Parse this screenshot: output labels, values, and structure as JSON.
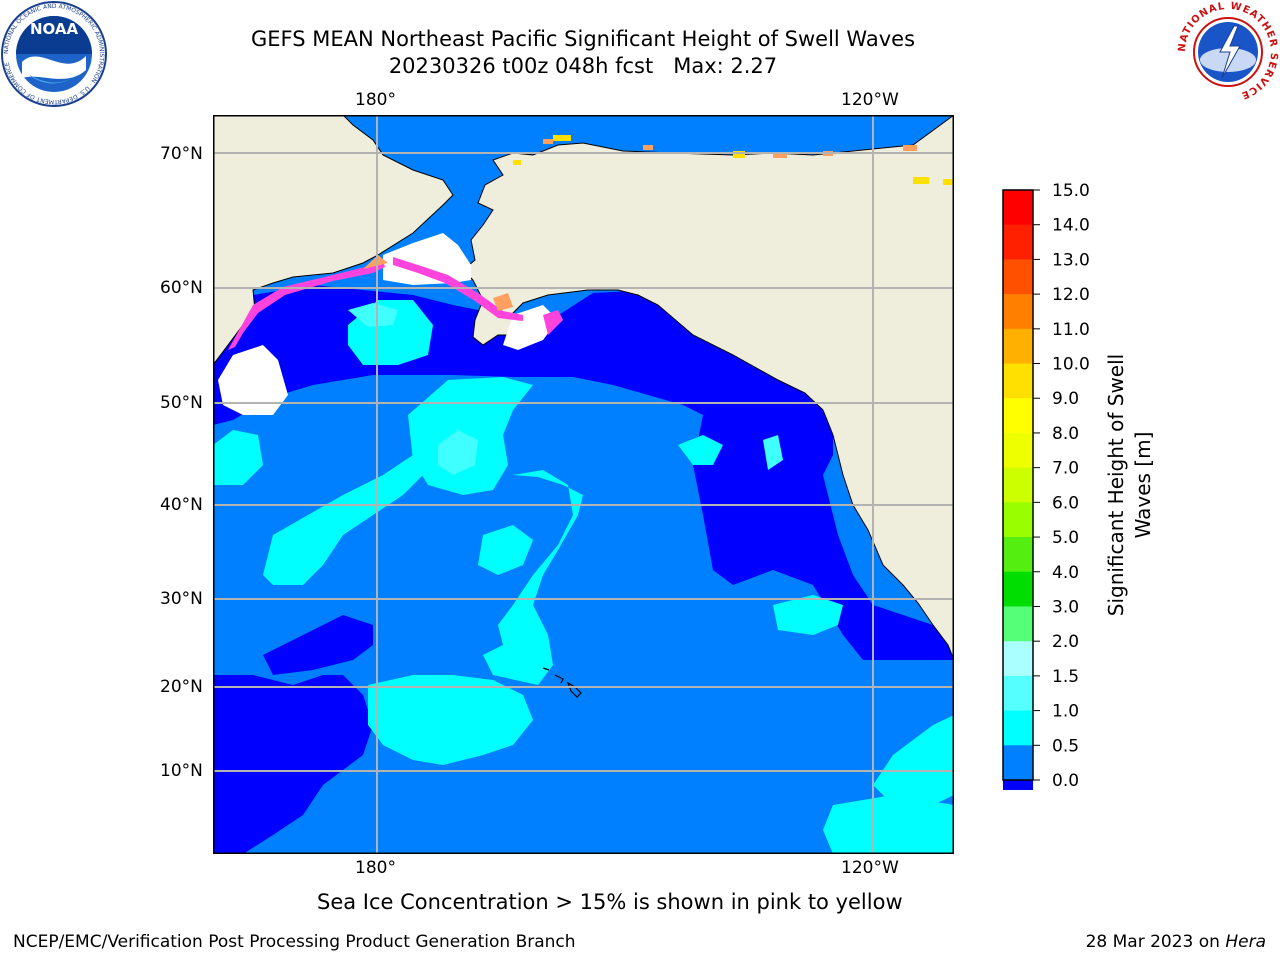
{
  "title": {
    "line1": "GEFS MEAN Northeast Pacific Significant Height of Swell Waves",
    "line2": "20230326 t00z 048h fcst   Max: 2.27"
  },
  "map": {
    "lon_labels_top": [
      "180°",
      "120°W"
    ],
    "lon_labels_bottom": [
      "180°",
      "120°W"
    ],
    "lat_labels": [
      "70°N",
      "60°N",
      "50°N",
      "40°N",
      "30°N",
      "20°N",
      "10°N"
    ],
    "colors": {
      "land": "#efeddc",
      "ocean_0_05": "#0000ff",
      "ocean_05_1": "#0080ff",
      "ocean_1_15": "#00ffff",
      "ocean_15_2": "#40ffff",
      "ice_pink": "#ff44dd",
      "ice_orange": "#ffa060",
      "ice_yellow": "#ffe000",
      "grid": "#b3b3b3"
    }
  },
  "colorbar": {
    "label_line1": "Significant Height of Swell",
    "label_line2": "Waves [m]",
    "ticks": [
      "15.0",
      "14.0",
      "13.0",
      "12.0",
      "11.0",
      "10.0",
      "9.0",
      "8.0",
      "7.0",
      "6.0",
      "5.0",
      "4.0",
      "3.0",
      "2.0",
      "1.5",
      "1.0",
      "0.5",
      "0.0"
    ],
    "bands_top_to_bottom": [
      "#ff0000",
      "#ff2000",
      "#ff5000",
      "#ff8000",
      "#ffb000",
      "#ffe000",
      "#ffff00",
      "#eeff00",
      "#ccff00",
      "#99ff00",
      "#55ee11",
      "#00dd00",
      "#55ff77",
      "#aaffff",
      "#55ffff",
      "#00ffff",
      "#0080ff",
      "#0000ff"
    ]
  },
  "logos": {
    "noaa_text": "NOAA",
    "noaa_ring": "NATIONAL OCEANIC AND ATMOSPHERIC ADMINISTRATION · U.S. DEPARTMENT OF COMMERCE",
    "nws_ring": "NATIONAL WEATHER SERVICE"
  },
  "footer": {
    "ice_note": "Sea Ice Concentration > 15% is shown in pink to yellow",
    "credit": "NCEP/EMC/Verification Post Processing Product Generation Branch",
    "date_prefix": "28 Mar 2023 on ",
    "date_host": "Hera"
  }
}
